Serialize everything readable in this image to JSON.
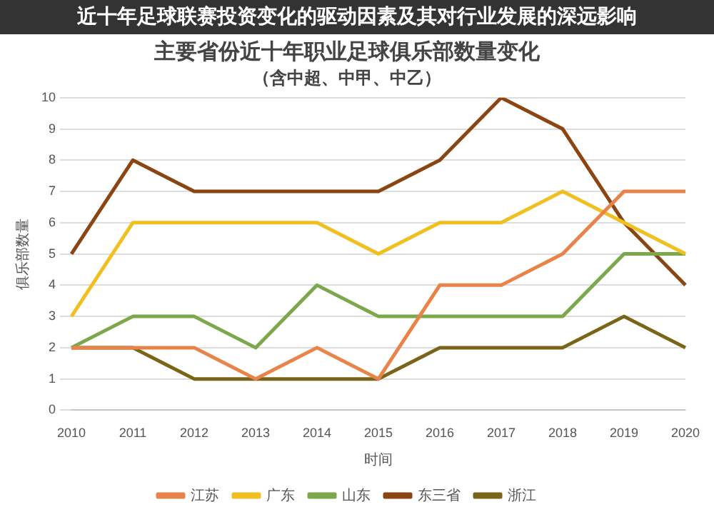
{
  "chart_data": {
    "type": "line",
    "title": "主要省份近十年职业足球俱乐部数量变化",
    "subtitle": "（含中超、中甲、中乙）",
    "xlabel": "时间",
    "ylabel": "俱乐部数量",
    "annotations": [
      "近十年足球联赛投资变化的驱动因素及其对行业发展的深远影响"
    ],
    "categories": [
      "2010",
      "2011",
      "2012",
      "2013",
      "2014",
      "2015",
      "2016",
      "2017",
      "2018",
      "2019",
      "2020"
    ],
    "series": [
      {
        "name": "江苏",
        "color": "#e8834a",
        "values": [
          2,
          2,
          2,
          1,
          2,
          1,
          4,
          4,
          5,
          7,
          7
        ]
      },
      {
        "name": "广东",
        "color": "#f0c020",
        "values": [
          3,
          6,
          6,
          6,
          6,
          5,
          6,
          6,
          7,
          6,
          5
        ]
      },
      {
        "name": "山东",
        "color": "#7aa84a",
        "values": [
          2,
          3,
          3,
          2,
          4,
          3,
          3,
          3,
          3,
          5,
          5
        ]
      },
      {
        "name": "东三省",
        "color": "#8b4513",
        "values": [
          5,
          8,
          7,
          7,
          7,
          7,
          8,
          10,
          9,
          6,
          4
        ]
      },
      {
        "name": "浙江",
        "color": "#7a6418",
        "values": [
          2,
          2,
          1,
          1,
          1,
          1,
          2,
          2,
          2,
          3,
          2
        ]
      }
    ],
    "ylim": [
      0,
      10
    ],
    "yticks": [
      0,
      1,
      2,
      3,
      4,
      5,
      6,
      7,
      8,
      9,
      10
    ],
    "grid": "y",
    "legend": "bottom",
    "marker": "none",
    "line_style": "solid"
  }
}
